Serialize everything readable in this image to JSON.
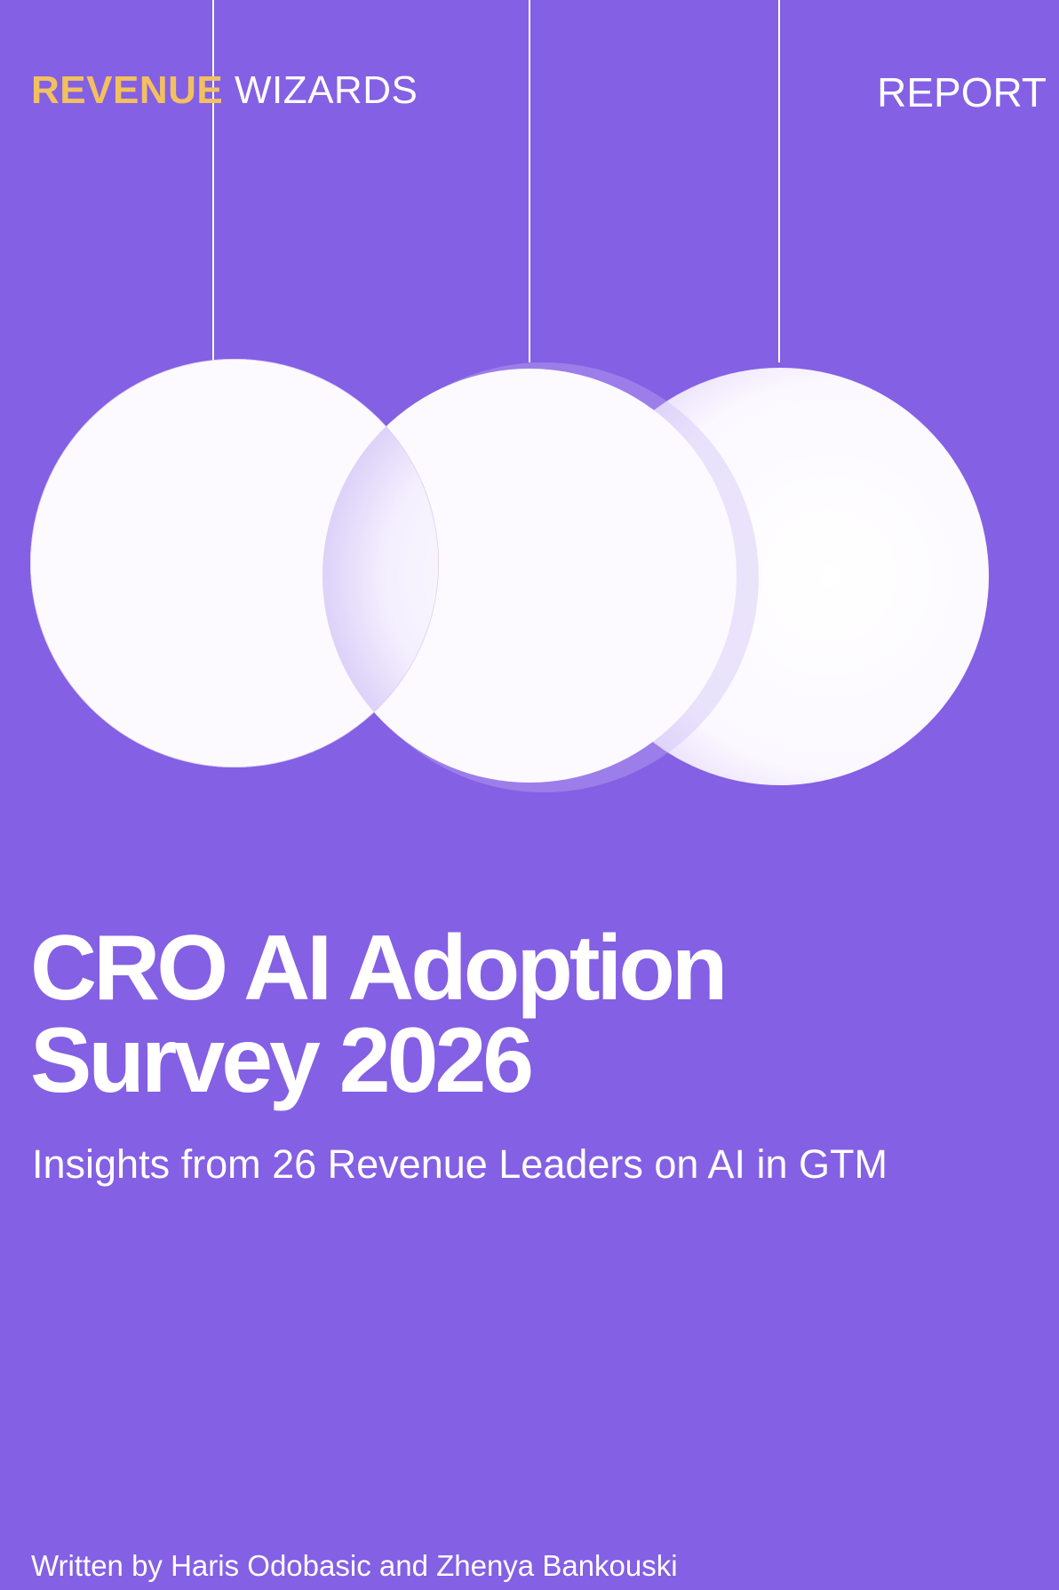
{
  "header": {
    "brand_part1": "REVENUE",
    "brand_part2": "WIZARDS",
    "report_label": "REPORT"
  },
  "cover": {
    "title_line1": "CRO AI Adoption",
    "title_line2": "Survey 2026",
    "subtitle": "Insights from 26 Revenue Leaders on AI in GTM",
    "authors": "Written by Haris Odobasic and Zhenya Bankouski"
  },
  "colors": {
    "background": "#8460e4",
    "brand_accent": "#f2c15e",
    "circle": "#fdfaff",
    "text": "#ffffff"
  }
}
